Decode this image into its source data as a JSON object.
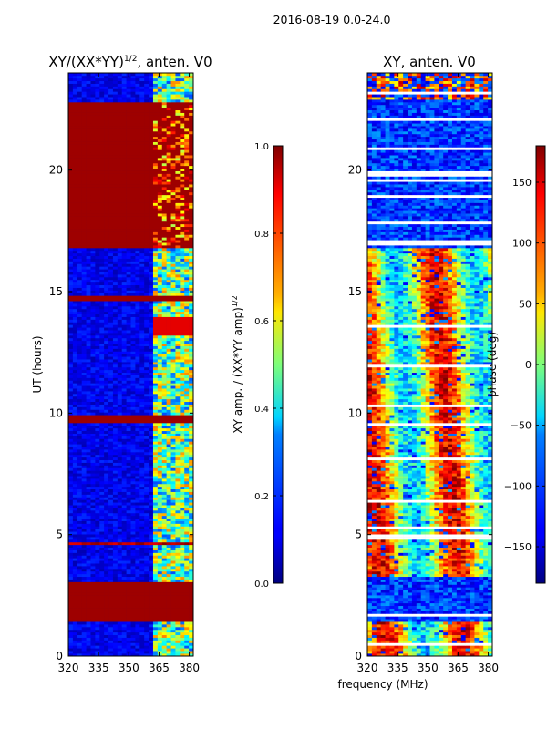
{
  "suptitle": "2016-08-19 0.0-24.0",
  "shared_xlabel": "frequency (MHz)",
  "chart_data": [
    {
      "type": "heatmap",
      "title": "XY/(XX*YY)^1/2, anten. V0",
      "title_main": "XY/(XX*YY)",
      "title_sup": "1/2",
      "title_rest": ", anten. V0",
      "ylabel": "UT (hours)",
      "xlim": [
        320,
        382
      ],
      "ylim": [
        0,
        24
      ],
      "xticks": [
        320,
        335,
        350,
        365,
        380
      ],
      "yticks": [
        0,
        5,
        10,
        15,
        20
      ],
      "colorbar": {
        "label_main": "XY amp. / (XX*YY amp)",
        "label_sup": "1/2",
        "range": [
          0.0,
          1.0
        ],
        "ticks": [
          "0.0",
          "0.2",
          "0.4",
          "0.6",
          "0.8",
          "1.0"
        ],
        "tick_values": [
          0.0,
          0.2,
          0.4,
          0.6,
          0.8,
          1.0
        ]
      },
      "saturated_bands_ut_hours": [
        [
          1.4,
          3.1
        ],
        [
          9.6,
          9.9
        ],
        [
          14.6,
          14.85
        ],
        [
          16.8,
          22.8
        ]
      ],
      "high_value_freq_range_mhz": [
        362,
        382
      ]
    },
    {
      "type": "heatmap",
      "title": "XY, anten. V0",
      "ylabel": "",
      "xlim": [
        320,
        382
      ],
      "ylim": [
        0,
        24
      ],
      "xticks": [
        320,
        335,
        350,
        365,
        380
      ],
      "yticks": [
        0,
        5,
        10,
        15,
        20
      ],
      "colorbar": {
        "label": "phase (deg)",
        "range": [
          -180,
          180
        ],
        "ticks": [
          "−150",
          "−100",
          "−50",
          "0",
          "50",
          "100",
          "150"
        ],
        "tick_values": [
          -150,
          -100,
          -50,
          0,
          50,
          100,
          150
        ]
      }
    }
  ]
}
